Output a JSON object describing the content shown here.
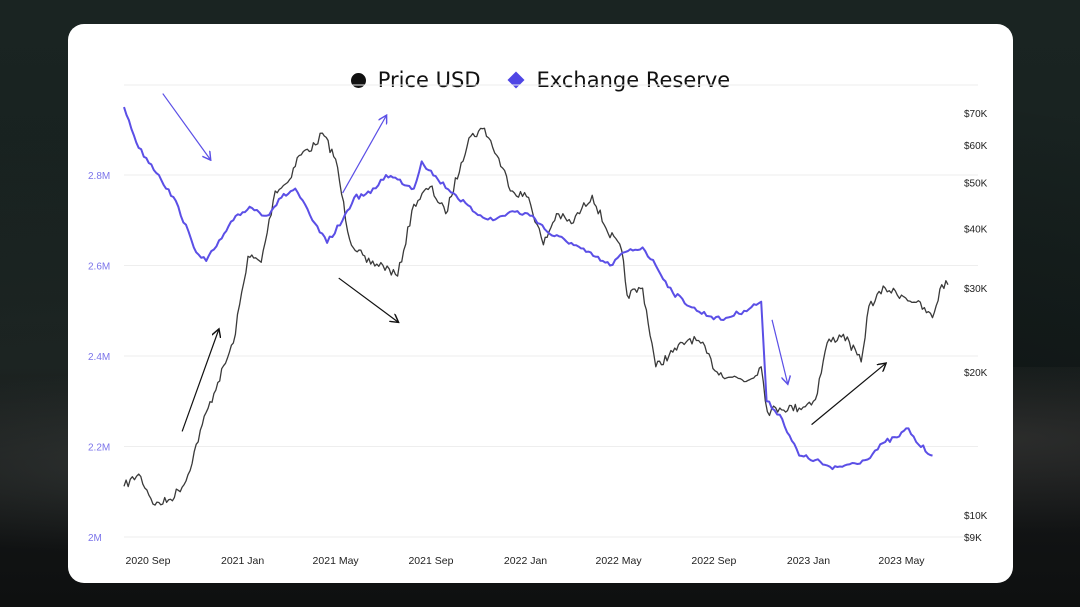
{
  "legend": {
    "price_label": "Price USD",
    "reserve_label": "Exchange Reserve"
  },
  "colors": {
    "price": "#3a3a3a",
    "reserve": "#5b4fe6",
    "left_axis_text": "#7b74ea",
    "right_axis_text": "#222222",
    "x_axis_text": "#222222",
    "grid": "#eeeeee",
    "annotation_price": "#111111",
    "annotation_reserve": "#5b4fe6"
  },
  "chart_data": {
    "type": "line",
    "x_ticks": [
      "2020 Sep",
      "2021 Jan",
      "2021 May",
      "2021 Sep",
      "2022 Jan",
      "2022 May",
      "2022 Sep",
      "2023 Jan",
      "2023 May"
    ],
    "y_left_ticks": [
      "2M",
      "2.2M",
      "2.4M",
      "2.6M",
      "2.8M"
    ],
    "y_left_values": [
      2000000,
      2200000,
      2400000,
      2600000,
      2800000
    ],
    "y_right_ticks": [
      "$70K",
      "$60K",
      "$50K",
      "$40K",
      "$30K",
      "$20K",
      "$10K",
      "$9K"
    ],
    "y_right_values": [
      70000,
      60000,
      50000,
      40000,
      30000,
      20000,
      10000,
      9000
    ],
    "y_right_scale": "log",
    "grid": true,
    "legend_position": "top-center",
    "series": [
      {
        "name": "Price USD",
        "axis": "right",
        "x": [
          "2020-08-01",
          "2020-08-20",
          "2020-09-10",
          "2020-09-30",
          "2020-10-20",
          "2020-11-10",
          "2020-11-30",
          "2020-12-20",
          "2021-01-08",
          "2021-01-25",
          "2021-02-12",
          "2021-02-28",
          "2021-03-15",
          "2021-04-05",
          "2021-04-14",
          "2021-05-01",
          "2021-05-19",
          "2021-06-10",
          "2021-07-01",
          "2021-07-20",
          "2021-08-10",
          "2021-08-31",
          "2021-09-20",
          "2021-10-10",
          "2021-10-20",
          "2021-11-09",
          "2021-11-25",
          "2021-12-15",
          "2022-01-05",
          "2022-01-24",
          "2022-02-10",
          "2022-03-01",
          "2022-03-28",
          "2022-04-15",
          "2022-05-05",
          "2022-05-12",
          "2022-06-01",
          "2022-06-18",
          "2022-07-10",
          "2022-08-01",
          "2022-08-15",
          "2022-09-05",
          "2022-09-25",
          "2022-10-15",
          "2022-11-01",
          "2022-11-09",
          "2022-11-25",
          "2022-12-20",
          "2023-01-10",
          "2023-01-25",
          "2023-02-15",
          "2023-03-10",
          "2023-03-20",
          "2023-04-10",
          "2023-05-01",
          "2023-05-20",
          "2023-06-10",
          "2023-06-22",
          "2023-06-30"
        ],
        "values": [
          11500,
          12200,
          10500,
          10800,
          11800,
          15500,
          19000,
          23000,
          35000,
          34000,
          48000,
          50000,
          57000,
          60000,
          63500,
          56000,
          38000,
          34000,
          33500,
          31800,
          45000,
          49000,
          43000,
          55000,
          62000,
          65000,
          57000,
          48000,
          46500,
          37000,
          43000,
          41000,
          47000,
          40000,
          36000,
          29000,
          30000,
          20500,
          22000,
          23500,
          23000,
          20000,
          19500,
          19200,
          20500,
          16500,
          16800,
          16800,
          17500,
          23000,
          24000,
          21000,
          27500,
          30000,
          29000,
          28000,
          26000,
          30500,
          30500
        ]
      },
      {
        "name": "Exchange Reserve",
        "axis": "left",
        "x": [
          "2020-08-01",
          "2020-08-20",
          "2020-09-15",
          "2020-10-10",
          "2020-10-30",
          "2020-11-15",
          "2020-12-05",
          "2020-12-20",
          "2021-01-10",
          "2021-02-01",
          "2021-02-20",
          "2021-03-10",
          "2021-04-01",
          "2021-04-20",
          "2021-05-10",
          "2021-05-25",
          "2021-06-15",
          "2021-07-05",
          "2021-07-20",
          "2021-08-10",
          "2021-08-20",
          "2021-09-10",
          "2021-09-30",
          "2021-10-25",
          "2021-11-20",
          "2021-12-15",
          "2022-01-10",
          "2022-02-01",
          "2022-03-01",
          "2022-03-20",
          "2022-04-20",
          "2022-05-10",
          "2022-06-01",
          "2022-06-18",
          "2022-07-10",
          "2022-08-10",
          "2022-09-10",
          "2022-10-10",
          "2022-11-01",
          "2022-11-08",
          "2022-11-25",
          "2022-12-20",
          "2023-01-10",
          "2023-02-01",
          "2023-02-20",
          "2023-03-15",
          "2023-04-10",
          "2023-04-25",
          "2023-05-10",
          "2023-05-20",
          "2023-06-10"
        ],
        "values": [
          2950000,
          2860000,
          2800000,
          2730000,
          2640000,
          2610000,
          2660000,
          2700000,
          2730000,
          2710000,
          2750000,
          2770000,
          2700000,
          2650000,
          2700000,
          2750000,
          2760000,
          2800000,
          2790000,
          2770000,
          2830000,
          2790000,
          2760000,
          2720000,
          2700000,
          2720000,
          2710000,
          2670000,
          2650000,
          2630000,
          2600000,
          2630000,
          2640000,
          2600000,
          2540000,
          2500000,
          2480000,
          2500000,
          2520000,
          2300000,
          2270000,
          2180000,
          2170000,
          2150000,
          2160000,
          2170000,
          2210000,
          2220000,
          2240000,
          2210000,
          2180000
        ]
      }
    ]
  }
}
